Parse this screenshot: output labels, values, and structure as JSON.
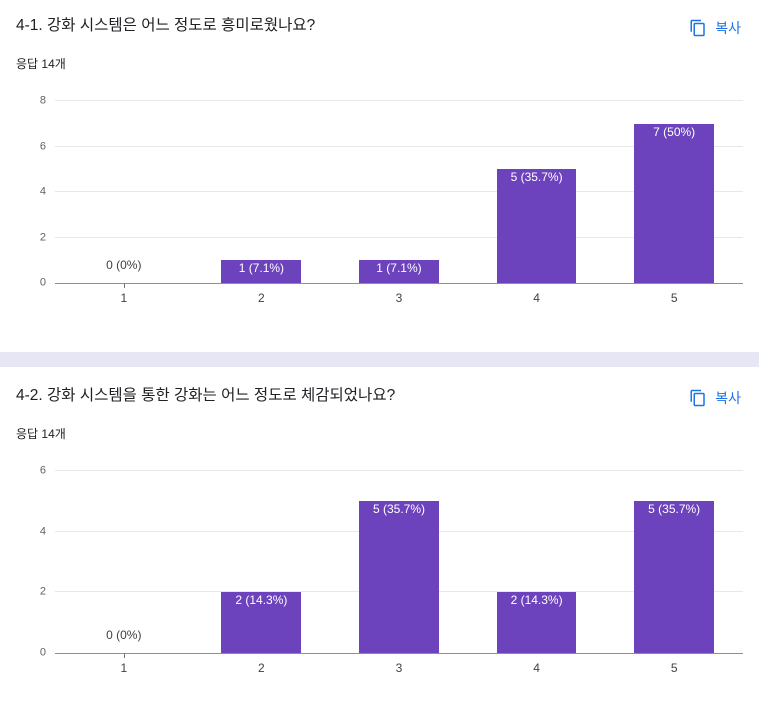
{
  "colors": {
    "bar": "#6c43bd",
    "accent_blue": "#1a73e8",
    "divider": "#e7e6f4"
  },
  "sections": [
    {
      "title": "4-1. 강화 시스템은 어느 정도로 흥미로웠나요?",
      "responses": "응답 14개",
      "copy_label": "복사"
    },
    {
      "title": "4-2. 강화 시스템을 통한 강화는 어느 정도로 체감되었나요?",
      "responses": "응답 14개",
      "copy_label": "복사"
    }
  ],
  "chart_data": [
    {
      "type": "bar",
      "title": "4-1. 강화 시스템은 어느 정도로 흥미로웠나요?",
      "categories": [
        "1",
        "2",
        "3",
        "4",
        "5"
      ],
      "values": [
        0,
        1,
        1,
        5,
        7
      ],
      "labels": [
        "0 (0%)",
        "1 (7.1%)",
        "1 (7.1%)",
        "5 (35.7%)",
        "7 (50%)"
      ],
      "xlabel": "",
      "ylabel": "",
      "ylim": [
        0,
        8
      ],
      "yticks": [
        0,
        2,
        4,
        6,
        8
      ],
      "grid": true,
      "legend": "none",
      "bar_color": "#6c43bd"
    },
    {
      "type": "bar",
      "title": "4-2. 강화 시스템을 통한 강화는 어느 정도로 체감되었나요?",
      "categories": [
        "1",
        "2",
        "3",
        "4",
        "5"
      ],
      "values": [
        0,
        2,
        5,
        2,
        5
      ],
      "labels": [
        "0 (0%)",
        "2 (14.3%)",
        "5 (35.7%)",
        "2 (14.3%)",
        "5 (35.7%)"
      ],
      "xlabel": "",
      "ylabel": "",
      "ylim": [
        0,
        6
      ],
      "yticks": [
        0,
        2,
        4,
        6
      ],
      "grid": true,
      "legend": "none",
      "bar_color": "#6c43bd"
    }
  ]
}
